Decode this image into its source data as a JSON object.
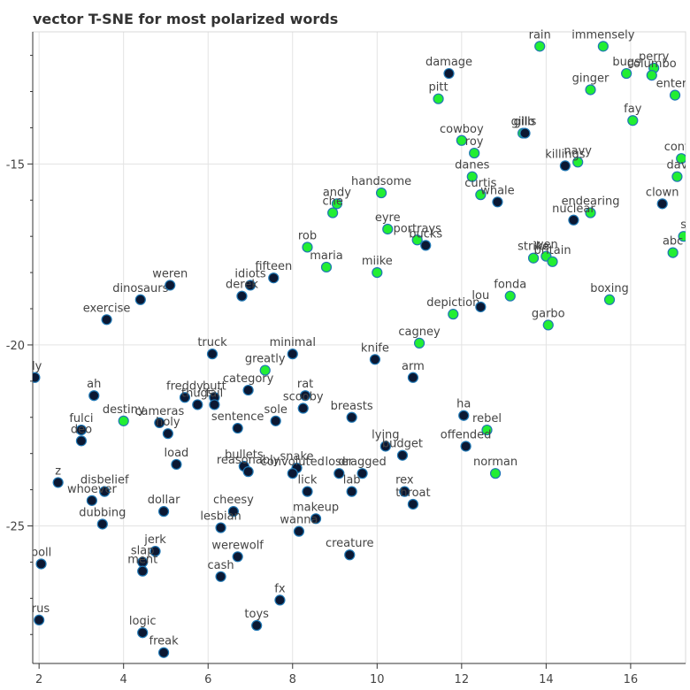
{
  "chart_data": {
    "type": "scatter",
    "title": "vector T-SNE for most polarized words",
    "xlabel": "",
    "ylabel": "",
    "xlim": [
      1.85,
      17.3
    ],
    "ylim": [
      -28.8,
      -11.35
    ],
    "xticks": [
      2,
      4,
      6,
      8,
      10,
      12,
      14,
      16
    ],
    "yticks": [
      -15,
      -20,
      -25
    ],
    "grid": true,
    "colors": {
      "positive": "#22ee33",
      "negative": "#0b1833",
      "edge": "#1f77b4"
    },
    "points": [
      {
        "word": "dy",
        "x": 1.9,
        "y": -20.9,
        "c": "negative"
      },
      {
        "word": "boll",
        "x": 2.05,
        "y": -26.05,
        "c": "negative"
      },
      {
        "word": "irus",
        "x": 2.0,
        "y": -27.6,
        "c": "negative"
      },
      {
        "word": "ah",
        "x": 3.3,
        "y": -21.4,
        "c": "negative"
      },
      {
        "word": "fulci",
        "x": 3.0,
        "y": -22.35,
        "c": "negative"
      },
      {
        "word": "deo",
        "x": 3.0,
        "y": -22.65,
        "c": "negative"
      },
      {
        "word": "z",
        "x": 2.45,
        "y": -23.8,
        "c": "negative"
      },
      {
        "word": "disbelief",
        "x": 3.55,
        "y": -24.05,
        "c": "negative"
      },
      {
        "word": "whoever",
        "x": 3.25,
        "y": -24.3,
        "c": "negative"
      },
      {
        "word": "dubbing",
        "x": 3.5,
        "y": -24.95,
        "c": "negative"
      },
      {
        "word": "exercise",
        "x": 3.6,
        "y": -19.3,
        "c": "negative"
      },
      {
        "word": "dinosaurs",
        "x": 4.4,
        "y": -18.75,
        "c": "negative"
      },
      {
        "word": "weren",
        "x": 5.1,
        "y": -18.35,
        "c": "negative"
      },
      {
        "word": "destiny",
        "x": 4.0,
        "y": -22.1,
        "c": "positive"
      },
      {
        "word": "cameras",
        "x": 4.85,
        "y": -22.15,
        "c": "negative"
      },
      {
        "word": "holy",
        "x": 5.05,
        "y": -22.45,
        "c": "negative"
      },
      {
        "word": "load",
        "x": 5.25,
        "y": -23.3,
        "c": "negative"
      },
      {
        "word": "dollar",
        "x": 4.95,
        "y": -24.6,
        "c": "negative"
      },
      {
        "word": "jerk",
        "x": 4.75,
        "y": -25.7,
        "c": "negative"
      },
      {
        "word": "slap",
        "x": 4.45,
        "y": -26.0,
        "c": "negative"
      },
      {
        "word": "ment",
        "x": 4.45,
        "y": -26.25,
        "c": "negative"
      },
      {
        "word": "logic",
        "x": 4.45,
        "y": -27.95,
        "c": "negative"
      },
      {
        "word": "freak",
        "x": 4.95,
        "y": -28.5,
        "c": "negative"
      },
      {
        "word": "truck",
        "x": 6.1,
        "y": -20.25,
        "c": "negative"
      },
      {
        "word": "freddy",
        "x": 5.45,
        "y": -21.45,
        "c": "negative"
      },
      {
        "word": "thugs",
        "x": 5.75,
        "y": -21.65,
        "c": "negative"
      },
      {
        "word": "butt",
        "x": 6.15,
        "y": -21.45,
        "c": "negative"
      },
      {
        "word": "fail",
        "x": 6.15,
        "y": -21.65,
        "c": "negative"
      },
      {
        "word": "sentence",
        "x": 6.7,
        "y": -22.3,
        "c": "negative"
      },
      {
        "word": "category",
        "x": 6.95,
        "y": -21.25,
        "c": "negative"
      },
      {
        "word": "greatly",
        "x": 7.35,
        "y": -20.7,
        "c": "positive"
      },
      {
        "word": "minimal",
        "x": 8.0,
        "y": -20.25,
        "c": "negative"
      },
      {
        "word": "rat",
        "x": 8.3,
        "y": -21.4,
        "c": "negative"
      },
      {
        "word": "scooby",
        "x": 8.25,
        "y": -21.75,
        "c": "negative"
      },
      {
        "word": "sole",
        "x": 7.6,
        "y": -22.1,
        "c": "negative"
      },
      {
        "word": "idiots",
        "x": 7.0,
        "y": -18.35,
        "c": "negative"
      },
      {
        "word": "derek",
        "x": 6.8,
        "y": -18.65,
        "c": "negative"
      },
      {
        "word": "fifteen",
        "x": 7.55,
        "y": -18.15,
        "c": "negative"
      },
      {
        "word": "bullets",
        "x": 6.85,
        "y": -23.35,
        "c": "negative"
      },
      {
        "word": "reasonably",
        "x": 6.95,
        "y": -23.5,
        "c": "negative"
      },
      {
        "word": "cheesy",
        "x": 6.6,
        "y": -24.6,
        "c": "negative"
      },
      {
        "word": "lesbian",
        "x": 6.3,
        "y": -25.05,
        "c": "negative"
      },
      {
        "word": "werewolf",
        "x": 6.7,
        "y": -25.85,
        "c": "negative"
      },
      {
        "word": "cash",
        "x": 6.3,
        "y": -26.4,
        "c": "negative"
      },
      {
        "word": "toys",
        "x": 7.15,
        "y": -27.75,
        "c": "negative"
      },
      {
        "word": "fx",
        "x": 7.7,
        "y": -27.05,
        "c": "negative"
      },
      {
        "word": "snake",
        "x": 8.1,
        "y": -23.4,
        "c": "negative"
      },
      {
        "word": "convoluted",
        "x": 8.0,
        "y": -23.55,
        "c": "negative"
      },
      {
        "word": "lick",
        "x": 8.35,
        "y": -24.05,
        "c": "negative"
      },
      {
        "word": "makeup",
        "x": 8.55,
        "y": -24.8,
        "c": "negative"
      },
      {
        "word": "wanna",
        "x": 8.15,
        "y": -25.15,
        "c": "negative"
      },
      {
        "word": "creature",
        "x": 9.35,
        "y": -25.8,
        "c": "negative"
      },
      {
        "word": "breasts",
        "x": 9.4,
        "y": -22.0,
        "c": "negative"
      },
      {
        "word": "loser",
        "x": 9.1,
        "y": -23.55,
        "c": "negative"
      },
      {
        "word": "dragged",
        "x": 9.65,
        "y": -23.55,
        "c": "negative"
      },
      {
        "word": "lab",
        "x": 9.4,
        "y": -24.05,
        "c": "negative"
      },
      {
        "word": "lying",
        "x": 10.2,
        "y": -22.8,
        "c": "negative"
      },
      {
        "word": "budget",
        "x": 10.6,
        "y": -23.05,
        "c": "negative"
      },
      {
        "word": "rex",
        "x": 10.65,
        "y": -24.05,
        "c": "negative"
      },
      {
        "word": "throat",
        "x": 10.85,
        "y": -24.4,
        "c": "negative"
      },
      {
        "word": "knife",
        "x": 9.95,
        "y": -20.4,
        "c": "negative"
      },
      {
        "word": "arm",
        "x": 10.85,
        "y": -20.9,
        "c": "negative"
      },
      {
        "word": "ha",
        "x": 12.05,
        "y": -21.95,
        "c": "negative"
      },
      {
        "word": "rebel",
        "x": 12.6,
        "y": -22.35,
        "c": "positive"
      },
      {
        "word": "offended",
        "x": 12.1,
        "y": -22.8,
        "c": "negative"
      },
      {
        "word": "norman",
        "x": 12.8,
        "y": -23.55,
        "c": "positive"
      },
      {
        "word": "cagney",
        "x": 11.0,
        "y": -19.95,
        "c": "positive"
      },
      {
        "word": "depiction",
        "x": 11.8,
        "y": -19.15,
        "c": "positive"
      },
      {
        "word": "lou",
        "x": 12.45,
        "y": -18.95,
        "c": "negative"
      },
      {
        "word": "fonda",
        "x": 13.15,
        "y": -18.65,
        "c": "positive"
      },
      {
        "word": "garbo",
        "x": 14.05,
        "y": -19.45,
        "c": "positive"
      },
      {
        "word": "boxing",
        "x": 15.5,
        "y": -18.75,
        "c": "positive"
      },
      {
        "word": "rob",
        "x": 8.35,
        "y": -17.3,
        "c": "positive"
      },
      {
        "word": "maria",
        "x": 8.8,
        "y": -17.85,
        "c": "positive"
      },
      {
        "word": "miike",
        "x": 10.0,
        "y": -18.0,
        "c": "positive"
      },
      {
        "word": "eyre",
        "x": 10.25,
        "y": -16.8,
        "c": "positive"
      },
      {
        "word": "portrays",
        "x": 10.95,
        "y": -17.1,
        "c": "positive"
      },
      {
        "word": "bucks",
        "x": 11.15,
        "y": -17.25,
        "c": "negative"
      },
      {
        "word": "andy",
        "x": 9.05,
        "y": -16.1,
        "c": "positive"
      },
      {
        "word": "che",
        "x": 8.95,
        "y": -16.35,
        "c": "positive"
      },
      {
        "word": "handsome",
        "x": 10.1,
        "y": -15.8,
        "c": "positive"
      },
      {
        "word": "danes",
        "x": 12.25,
        "y": -15.35,
        "c": "positive"
      },
      {
        "word": "curtis",
        "x": 12.45,
        "y": -15.85,
        "c": "positive"
      },
      {
        "word": "whale",
        "x": 12.85,
        "y": -16.05,
        "c": "negative"
      },
      {
        "word": "cowboy",
        "x": 12.0,
        "y": -14.35,
        "c": "positive"
      },
      {
        "word": "roy",
        "x": 12.3,
        "y": -14.7,
        "c": "positive"
      },
      {
        "word": "pitt",
        "x": 11.45,
        "y": -13.2,
        "c": "positive"
      },
      {
        "word": "damage",
        "x": 11.7,
        "y": -12.5,
        "c": "negative"
      },
      {
        "word": "gillo",
        "x": 13.45,
        "y": -14.15,
        "c": "positive"
      },
      {
        "word": "gills",
        "x": 13.5,
        "y": -14.15,
        "c": "negative"
      },
      {
        "word": "rain",
        "x": 13.85,
        "y": -11.75,
        "c": "positive"
      },
      {
        "word": "immensely",
        "x": 15.35,
        "y": -11.75,
        "c": "positive"
      },
      {
        "word": "ginger",
        "x": 15.05,
        "y": -12.95,
        "c": "positive"
      },
      {
        "word": "bugs",
        "x": 15.9,
        "y": -12.5,
        "c": "positive"
      },
      {
        "word": "perry",
        "x": 16.55,
        "y": -12.35,
        "c": "positive"
      },
      {
        "word": "columbo",
        "x": 16.5,
        "y": -12.55,
        "c": "positive"
      },
      {
        "word": "enterp",
        "x": 17.05,
        "y": -13.1,
        "c": "positive"
      },
      {
        "word": "fay",
        "x": 16.05,
        "y": -13.8,
        "c": "positive"
      },
      {
        "word": "navy",
        "x": 14.75,
        "y": -14.95,
        "c": "positive"
      },
      {
        "word": "killings",
        "x": 14.45,
        "y": -15.05,
        "c": "negative"
      },
      {
        "word": "endearing",
        "x": 15.05,
        "y": -16.35,
        "c": "positive"
      },
      {
        "word": "nuclear",
        "x": 14.65,
        "y": -16.55,
        "c": "negative"
      },
      {
        "word": "clown",
        "x": 16.75,
        "y": -16.1,
        "c": "negative"
      },
      {
        "word": "conve",
        "x": 17.2,
        "y": -14.85,
        "c": "positive"
      },
      {
        "word": "dav",
        "x": 17.1,
        "y": -15.35,
        "c": "positive"
      },
      {
        "word": "s",
        "x": 17.25,
        "y": -17.0,
        "c": "positive"
      },
      {
        "word": "abc",
        "x": 17.0,
        "y": -17.45,
        "c": "positive"
      },
      {
        "word": "strike",
        "x": 13.7,
        "y": -17.6,
        "c": "positive"
      },
      {
        "word": "wen",
        "x": 14.0,
        "y": -17.55,
        "c": "positive"
      },
      {
        "word": "britain",
        "x": 14.15,
        "y": -17.7,
        "c": "positive"
      }
    ]
  }
}
